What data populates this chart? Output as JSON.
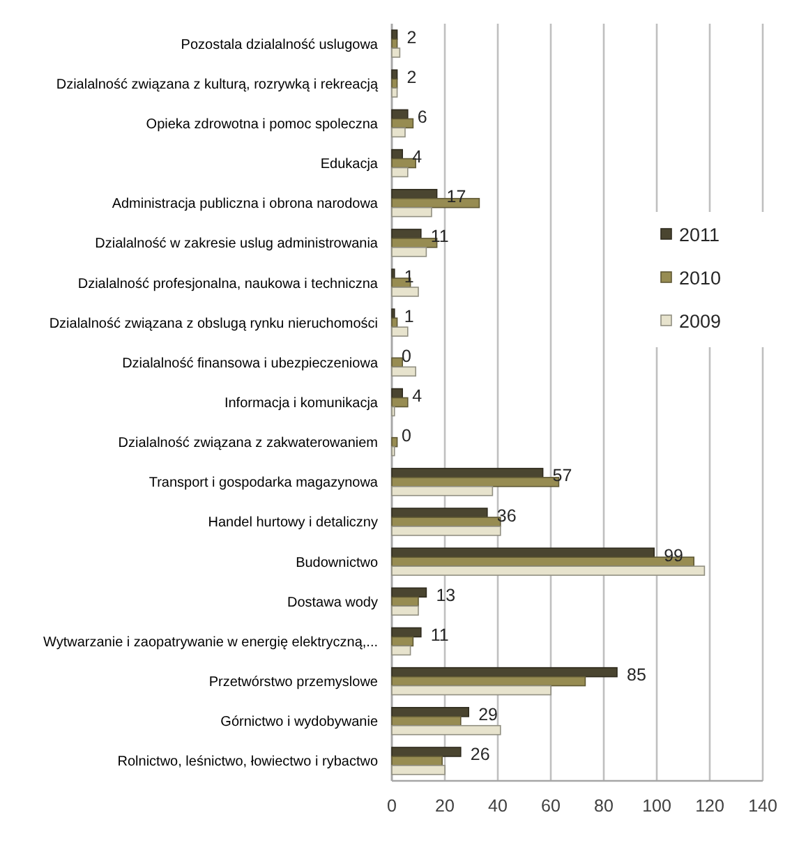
{
  "chart_data": {
    "type": "bar",
    "orientation": "horizontal",
    "categories": [
      "Pozostala dzialalność uslugowa",
      "Dzialalność związana z kulturą, rozrywką i rekreacją",
      "Opieka zdrowotna i pomoc spoleczna",
      "Edukacja",
      "Administracja publiczna i obrona narodowa",
      "Dzialalność w zakresie uslug administrowania",
      "Dzialalność profesjonalna, naukowa i techniczna",
      "Dzialalność związana z obslugą rynku nieruchomości",
      "Dzialalność finansowa i ubezpieczeniowa",
      "Informacja i komunikacja",
      "Dzialalność związana z zakwaterowaniem",
      "Transport i gospodarka magazynowa",
      "Handel hurtowy i detaliczny",
      "Budownictwo",
      "Dostawa wody",
      "Wytwarzanie i zaopatrywanie w energię elektryczną,...",
      "Przetwórstwo przemyslowe",
      "Górnictwo i wydobywanie",
      "Rolnictwo, leśnictwo, łowiectwo i rybactwo"
    ],
    "series": [
      {
        "name": "2011",
        "color": "#4a4530",
        "values": [
          2,
          2,
          6,
          4,
          17,
          11,
          1,
          1,
          0,
          4,
          0,
          57,
          36,
          99,
          13,
          11,
          85,
          29,
          26
        ],
        "value_labels": [
          "2",
          "2",
          "6",
          "4",
          "17",
          "11",
          "1",
          "1",
          "0",
          "4",
          "0",
          "57",
          "36",
          "99",
          "13",
          "11",
          "85",
          "29",
          "26"
        ]
      },
      {
        "name": "2010",
        "color": "#978c52",
        "values": [
          2,
          2,
          8,
          9,
          33,
          17,
          7,
          2,
          4,
          6,
          2,
          63,
          41,
          114,
          10,
          8,
          73,
          26,
          19
        ]
      },
      {
        "name": "2009",
        "color": "#e7e3cd",
        "values": [
          3,
          2,
          5,
          6,
          15,
          13,
          10,
          6,
          9,
          1,
          1,
          38,
          41,
          118,
          10,
          7,
          60,
          41,
          20
        ]
      }
    ],
    "xlim": [
      0,
      140
    ],
    "xticks": [
      0,
      20,
      40,
      60,
      80,
      100,
      120,
      140
    ],
    "grid": "x",
    "legend": "right"
  }
}
